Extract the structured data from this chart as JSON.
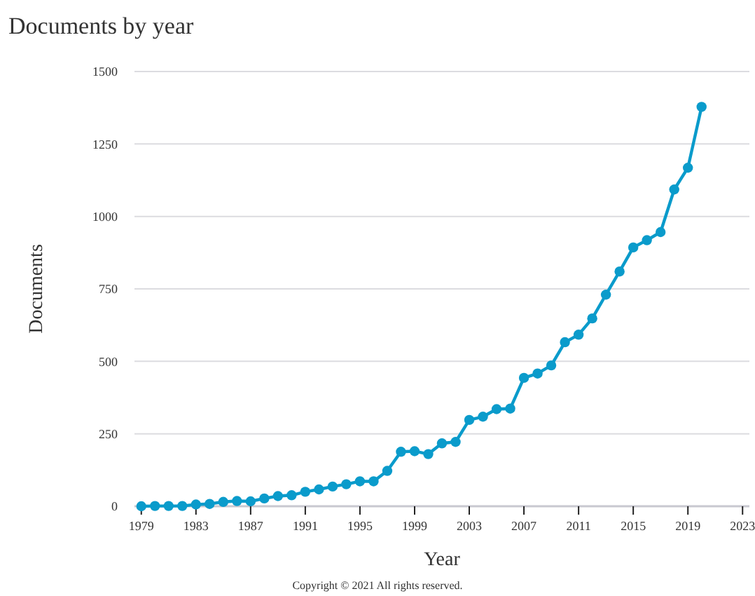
{
  "chart_data": {
    "type": "line",
    "title": "Documents by year",
    "xlabel": "Year",
    "ylabel": "Documents",
    "x": [
      1979,
      1980,
      1981,
      1982,
      1983,
      1984,
      1985,
      1986,
      1987,
      1988,
      1989,
      1990,
      1991,
      1992,
      1993,
      1994,
      1995,
      1996,
      1997,
      1998,
      1999,
      2000,
      2001,
      2002,
      2003,
      2004,
      2005,
      2006,
      2007,
      2008,
      2009,
      2010,
      2011,
      2012,
      2013,
      2014,
      2015,
      2016,
      2017,
      2018,
      2019,
      2020
    ],
    "series": [
      {
        "color": "#0a9bcb",
        "values": [
          0,
          1,
          1,
          1,
          6,
          8,
          15,
          18,
          17,
          27,
          35,
          38,
          50,
          58,
          68,
          76,
          86,
          86,
          122,
          188,
          190,
          180,
          217,
          222,
          298,
          309,
          335,
          337,
          443,
          458,
          486,
          566,
          592,
          648,
          730,
          810,
          893,
          918,
          946,
          1093,
          1168,
          1378
        ]
      }
    ],
    "xlim": [
      1978.5,
      2023.5
    ],
    "xticks": [
      1979,
      1983,
      1987,
      1991,
      1995,
      1999,
      2003,
      2007,
      2011,
      2015,
      2019,
      2023
    ],
    "ylim": [
      0,
      1500
    ],
    "yticks": [
      0,
      250,
      500,
      750,
      1000,
      1250,
      1500
    ],
    "grid": "y",
    "marker": "circle",
    "line_style": "solid",
    "annotations": [
      "Copyright © 2021 All rights reserved."
    ]
  }
}
